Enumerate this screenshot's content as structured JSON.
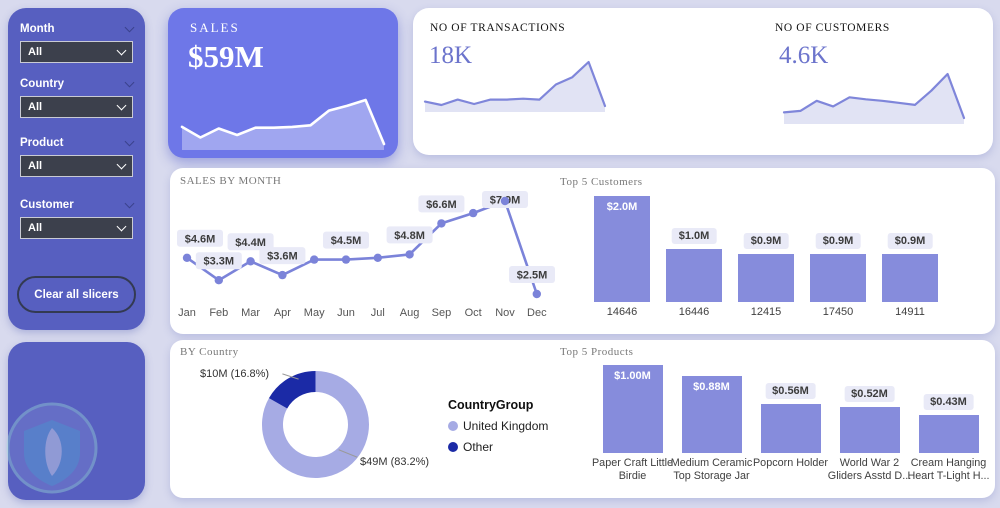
{
  "app": {
    "background": "#D8DAEE",
    "accent": "#6E77E8",
    "sidebar_color": "#575FC0",
    "bar_color": "#868CDC",
    "line_color": "#7B83D9"
  },
  "sidebar": {
    "slicers": [
      {
        "label": "Month",
        "value": "All"
      },
      {
        "label": "Country",
        "value": "All"
      },
      {
        "label": "Product",
        "value": "All"
      },
      {
        "label": "Customer",
        "value": "All"
      }
    ],
    "clear_button_label": "Clear all slicers"
  },
  "kpi_cards": {
    "sales": {
      "title": "SALES",
      "value": "$59M"
    },
    "transactions": {
      "title": "NO OF TRANSACTIONS",
      "value": "18K"
    },
    "customers": {
      "title": "NO OF CUSTOMERS",
      "value": "4.6K"
    }
  },
  "chart_data": [
    {
      "id": "sales_trend",
      "type": "area",
      "title": "SALES trend sparkline",
      "x": [
        "Jan",
        "Feb",
        "Mar",
        "Apr",
        "May",
        "Jun",
        "Jul",
        "Aug",
        "Sep",
        "Oct",
        "Nov",
        "Dec"
      ],
      "values": [
        4.6,
        3.3,
        4.4,
        3.6,
        4.5,
        4.5,
        4.6,
        4.8,
        6.6,
        7.2,
        7.9,
        2.5
      ],
      "line_color": "#FFFFFF",
      "fill_color": "rgba(255,255,255,0.35)"
    },
    {
      "id": "transactions_trend",
      "type": "area",
      "title": "NO OF TRANSACTIONS trend sparkline",
      "unit": "relative",
      "values": [
        0.19,
        0.12,
        0.23,
        0.14,
        0.23,
        0.23,
        0.25,
        0.23,
        0.54,
        0.69,
        1.0,
        0.1
      ],
      "line_color": "#7F86DA",
      "fill_color": "#E1E3F4"
    },
    {
      "id": "customers_trend",
      "type": "area",
      "title": "NO OF CUSTOMERS trend sparkline",
      "unit": "relative",
      "values": [
        0.24,
        0.27,
        0.47,
        0.36,
        0.54,
        0.5,
        0.47,
        0.43,
        0.39,
        0.67,
        1.0,
        0.13
      ],
      "line_color": "#7F86DA",
      "fill_color": "#E1E3F4"
    },
    {
      "id": "sales_by_month",
      "type": "line",
      "title": "SALES BY MONTH",
      "categories": [
        "Jan",
        "Feb",
        "Mar",
        "Apr",
        "May",
        "Jun",
        "Jul",
        "Aug",
        "Sep",
        "Oct",
        "Nov",
        "Dec"
      ],
      "values": [
        4.6,
        3.3,
        4.4,
        3.6,
        4.5,
        4.5,
        4.6,
        4.8,
        6.6,
        7.2,
        7.9,
        2.5
      ],
      "data_labels": [
        "$4.6M",
        "$3.3M",
        "$4.4M",
        "$3.6M",
        null,
        "$4.5M",
        null,
        "$4.8M",
        "$6.6M",
        null,
        "$7.9M",
        "$2.5M"
      ],
      "ylabel": "",
      "xlabel": "",
      "ylim": [
        2.0,
        8.5
      ],
      "grid": false,
      "line_color": "#7B83D9"
    },
    {
      "id": "top_5_customers",
      "type": "bar",
      "title": "Top 5 Customers",
      "categories": [
        "14646",
        "16446",
        "12415",
        "17450",
        "14911"
      ],
      "values": [
        2.0,
        1.0,
        0.9,
        0.9,
        0.9
      ],
      "data_labels": [
        "$2.0M",
        "$1.0M",
        "$0.9M",
        "$0.9M",
        "$0.9M"
      ],
      "label_inside": [
        true,
        false,
        false,
        false,
        false
      ],
      "ylim": [
        0,
        2.0
      ],
      "grid": false,
      "bar_color": "#868CDC"
    },
    {
      "id": "by_country",
      "type": "pie",
      "title": "BY Country",
      "legend_title": "CountryGroup",
      "legend_position": "right",
      "slices": [
        {
          "name": "United Kingdom",
          "value_label": "$49M (83.2%)",
          "value_m": 49,
          "pct": 83.2,
          "color": "#A6ABE4"
        },
        {
          "name": "Other",
          "value_label": "$10M (16.8%)",
          "value_m": 10,
          "pct": 16.8,
          "color": "#1B2AA6"
        }
      ]
    },
    {
      "id": "top_5_products",
      "type": "bar",
      "title": "Top 5 Products",
      "categories": [
        "Paper Craft Little Birdie",
        "Medium Ceramic Top Storage Jar",
        "Popcorn Holder",
        "World War 2 Gliders Asstd D...",
        "Cream Hanging Heart T-Light H..."
      ],
      "values": [
        1.0,
        0.88,
        0.56,
        0.52,
        0.43
      ],
      "data_labels": [
        "$1.00M",
        "$0.88M",
        "$0.56M",
        "$0.52M",
        "$0.43M"
      ],
      "label_inside": [
        true,
        true,
        false,
        false,
        false
      ],
      "ylim": [
        0,
        1.0
      ],
      "grid": false,
      "bar_color": "#868CDC"
    }
  ],
  "icons": {
    "chevron": "chevron-down",
    "watermark": "shield-leaf-logo"
  }
}
